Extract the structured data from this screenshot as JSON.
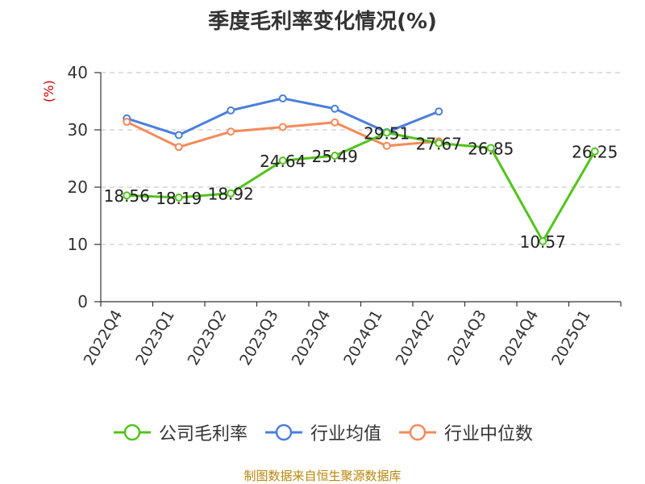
{
  "chart_data": {
    "type": "line",
    "title": "季度毛利率变化情况(%)",
    "ylabel": "(%)",
    "xlabel": "",
    "ylim": [
      0,
      40
    ],
    "yticks": [
      0,
      10,
      20,
      30,
      40
    ],
    "grid": "horizontal dashed",
    "legend_position": "bottom",
    "categories": [
      "2022Q4",
      "2023Q1",
      "2023Q2",
      "2023Q3",
      "2023Q4",
      "2024Q1",
      "2024Q2",
      "2024Q3",
      "2024Q4",
      "2025Q1"
    ],
    "series": [
      {
        "name": "公司毛利率",
        "color": "#52c41a",
        "show_labels": true,
        "values": [
          18.56,
          18.19,
          18.92,
          24.64,
          25.49,
          29.51,
          27.67,
          26.85,
          10.57,
          26.25
        ]
      },
      {
        "name": "行业均值",
        "color": "#4a7fdc",
        "show_labels": false,
        "values": [
          32.0,
          29.1,
          33.4,
          35.5,
          33.7,
          29.6,
          33.2,
          null,
          null,
          null
        ]
      },
      {
        "name": "行业中位数",
        "color": "#f5895a",
        "show_labels": false,
        "values": [
          31.4,
          27.0,
          29.7,
          30.5,
          31.3,
          27.2,
          28.0,
          null,
          null,
          null
        ]
      }
    ]
  },
  "source_note": "制图数据来自恒生聚源数据库"
}
